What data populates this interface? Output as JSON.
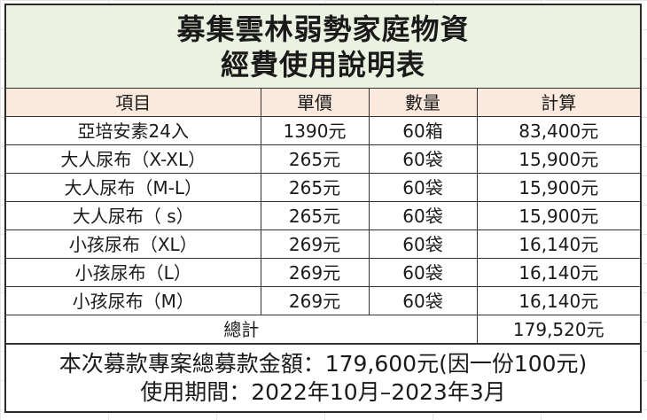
{
  "title": {
    "line1": "募集雲林弱勢家庭物資",
    "line2": "經費使用說明表"
  },
  "table": {
    "headers": [
      "項目",
      "單價",
      "數量",
      "計算"
    ],
    "rows": [
      {
        "item": "亞培安素24入",
        "price": "1390元",
        "qty": "60箱",
        "calc": "83,400元"
      },
      {
        "item": "大人尿布（X-XL）",
        "price": "265元",
        "qty": "60袋",
        "calc": "15,900元"
      },
      {
        "item": "大人尿布（M-L）",
        "price": "265元",
        "qty": "60袋",
        "calc": "15,900元"
      },
      {
        "item": "大人尿布（ s）",
        "price": "265元",
        "qty": "60袋",
        "calc": "15,900元"
      },
      {
        "item": "小孩尿布（XL）",
        "price": "269元",
        "qty": "60袋",
        "calc": "16,140元"
      },
      {
        "item": "小孩尿布（L）",
        "price": "269元",
        "qty": "60袋",
        "calc": "16,140元"
      },
      {
        "item": "小孩尿布（M）",
        "price": "269元",
        "qty": "60袋",
        "calc": "16,140元"
      }
    ],
    "total": {
      "label": "總計",
      "value": "179,520元"
    }
  },
  "footer": {
    "line1": "本次募款專案總募款金額：179,600元(因一份100元)",
    "line2": "使用期間：2022年10月–2023年3月"
  },
  "colors": {
    "title_bg": "#ebf2e2",
    "header_bg": "#fbe9dd",
    "border": "#333333"
  }
}
